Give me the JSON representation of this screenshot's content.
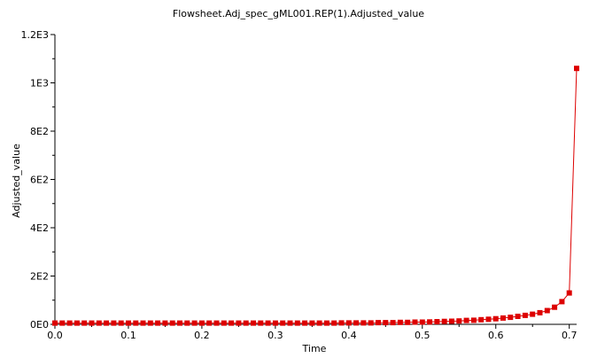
{
  "chart_data": {
    "type": "line",
    "title": "Flowsheet.Adj_spec_gML001.REP(1).Adjusted_value",
    "xlabel": "Time",
    "ylabel": "Adjusted_value",
    "xlim": [
      0,
      0.71
    ],
    "ylim": [
      0,
      1200
    ],
    "x_ticks": [
      0.0,
      0.1,
      0.2,
      0.3,
      0.4,
      0.5,
      0.6,
      0.7
    ],
    "x_tick_labels": [
      "0.0",
      "0.1",
      "0.2",
      "0.3",
      "0.4",
      "0.5",
      "0.6",
      "0.7"
    ],
    "y_ticks": [
      0,
      200,
      400,
      600,
      800,
      1000,
      1200
    ],
    "y_tick_labels": [
      "0E0",
      "2E2",
      "4E2",
      "6E2",
      "8E2",
      "1E3",
      "1.2E3"
    ],
    "grid": false,
    "legend": "none",
    "series": [
      {
        "color": "#dd0000",
        "marker": "square",
        "points": [
          [
            0.0,
            5
          ],
          [
            0.01,
            5
          ],
          [
            0.02,
            5
          ],
          [
            0.03,
            5
          ],
          [
            0.04,
            5
          ],
          [
            0.05,
            5
          ],
          [
            0.06,
            5
          ],
          [
            0.07,
            5
          ],
          [
            0.08,
            5
          ],
          [
            0.09,
            5
          ],
          [
            0.1,
            5
          ],
          [
            0.11,
            5
          ],
          [
            0.12,
            5
          ],
          [
            0.13,
            5
          ],
          [
            0.14,
            5
          ],
          [
            0.15,
            5
          ],
          [
            0.16,
            5
          ],
          [
            0.17,
            5
          ],
          [
            0.18,
            5
          ],
          [
            0.19,
            5
          ],
          [
            0.2,
            5
          ],
          [
            0.21,
            5
          ],
          [
            0.22,
            5
          ],
          [
            0.23,
            5
          ],
          [
            0.24,
            5
          ],
          [
            0.25,
            5
          ],
          [
            0.26,
            5
          ],
          [
            0.27,
            5
          ],
          [
            0.28,
            5
          ],
          [
            0.29,
            5
          ],
          [
            0.3,
            5
          ],
          [
            0.31,
            5
          ],
          [
            0.32,
            5
          ],
          [
            0.33,
            5
          ],
          [
            0.34,
            5
          ],
          [
            0.35,
            5
          ],
          [
            0.36,
            5
          ],
          [
            0.37,
            5
          ],
          [
            0.38,
            5
          ],
          [
            0.39,
            6
          ],
          [
            0.4,
            6
          ],
          [
            0.41,
            6
          ],
          [
            0.42,
            6
          ],
          [
            0.43,
            6
          ],
          [
            0.44,
            7
          ],
          [
            0.45,
            7
          ],
          [
            0.46,
            7
          ],
          [
            0.47,
            8
          ],
          [
            0.48,
            8
          ],
          [
            0.49,
            9
          ],
          [
            0.5,
            9
          ],
          [
            0.51,
            10
          ],
          [
            0.52,
            11
          ],
          [
            0.53,
            12
          ],
          [
            0.54,
            13
          ],
          [
            0.55,
            14
          ],
          [
            0.56,
            16
          ],
          [
            0.57,
            17
          ],
          [
            0.58,
            19
          ],
          [
            0.59,
            21
          ],
          [
            0.6,
            23
          ],
          [
            0.61,
            26
          ],
          [
            0.62,
            29
          ],
          [
            0.63,
            33
          ],
          [
            0.64,
            37
          ],
          [
            0.65,
            42
          ],
          [
            0.66,
            48
          ],
          [
            0.67,
            57
          ],
          [
            0.68,
            71
          ],
          [
            0.69,
            94
          ],
          [
            0.7,
            130
          ],
          [
            0.71,
            1060
          ]
        ]
      }
    ]
  }
}
